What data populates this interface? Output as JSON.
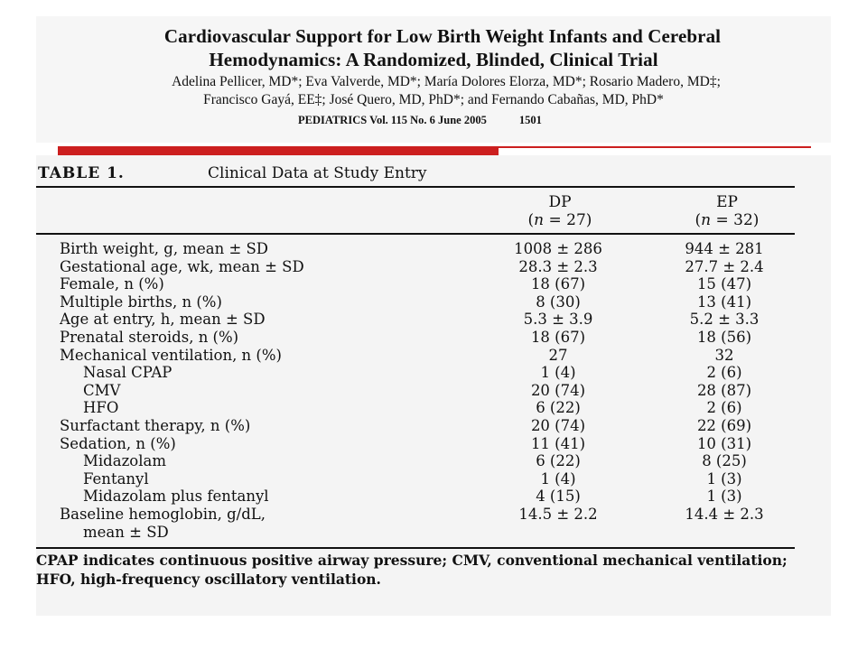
{
  "header": {
    "title_line1": "Cardiovascular Support for Low Birth Weight Infants and Cerebral",
    "title_line2": "Hemodynamics: A Randomized, Blinded, Clinical Trial",
    "authors_line1": "Adelina Pellicer, MD*; Eva Valverde, MD*; María Dolores Elorza, MD*; Rosario Madero, MD‡;",
    "authors_line2": "Francisco Gayá, EE‡; José Quero, MD, PhD*; and Fernando Cabañas, MD, PhD*",
    "citation": "PEDIATRICS Vol. 115 No. 6 June 2005",
    "page_number": "1501"
  },
  "table": {
    "caption_label": "TABLE 1.",
    "caption_title": "Clinical Data at Study Entry",
    "columns": [
      {
        "name": "DP",
        "n": "(n = 27)"
      },
      {
        "name": "EP",
        "n": "(n = 32)"
      }
    ],
    "rows": [
      {
        "label": "Birth weight, g, mean ± SD",
        "dp": "1008 ± 286",
        "ep": "944 ± 281"
      },
      {
        "label": "Gestational age, wk, mean ± SD",
        "dp": "28.3 ± 2.3",
        "ep": "27.7 ± 2.4"
      },
      {
        "label": "Female, n (%)",
        "dp": "18 (67)",
        "ep": "15 (47)"
      },
      {
        "label": "Multiple births, n (%)",
        "dp": "8 (30)",
        "ep": "13 (41)"
      },
      {
        "label": "Age at entry, h, mean ± SD",
        "dp": "5.3 ± 3.9",
        "ep": "5.2 ± 3.3"
      },
      {
        "label": "Prenatal steroids, n (%)",
        "dp": "18 (67)",
        "ep": "18 (56)"
      },
      {
        "label": "Mechanical ventilation, n (%)",
        "dp": "27",
        "ep": "32"
      },
      {
        "label": "Nasal CPAP",
        "dp": "1 (4)",
        "ep": "2 (6)"
      },
      {
        "label": "CMV",
        "dp": "20 (74)",
        "ep": "28 (87)"
      },
      {
        "label": "HFO",
        "dp": "6 (22)",
        "ep": "2 (6)"
      },
      {
        "label": "Surfactant therapy, n (%)",
        "dp": "20 (74)",
        "ep": "22 (69)"
      },
      {
        "label": "Sedation, n (%)",
        "dp": "11 (41)",
        "ep": "10 (31)"
      },
      {
        "label": "Midazolam",
        "dp": "6 (22)",
        "ep": "8 (25)"
      },
      {
        "label": "Fentanyl",
        "dp": "1 (4)",
        "ep": "1 (3)"
      },
      {
        "label": "Midazolam plus fentanyl",
        "dp": "4 (15)",
        "ep": "1 (3)"
      },
      {
        "label": "Baseline hemoglobin, g/dL,",
        "dp": "14.5 ± 2.2",
        "ep": "14.4 ± 2.3"
      },
      {
        "label": "mean ± SD",
        "dp": "",
        "ep": ""
      }
    ],
    "footnote": "CPAP indicates continuous positive airway pressure; CMV, conventional mechanical ventilation; HFO, high-frequency oscillatory ventilation."
  },
  "colors": {
    "accent_bar": "#cc1f1f"
  }
}
